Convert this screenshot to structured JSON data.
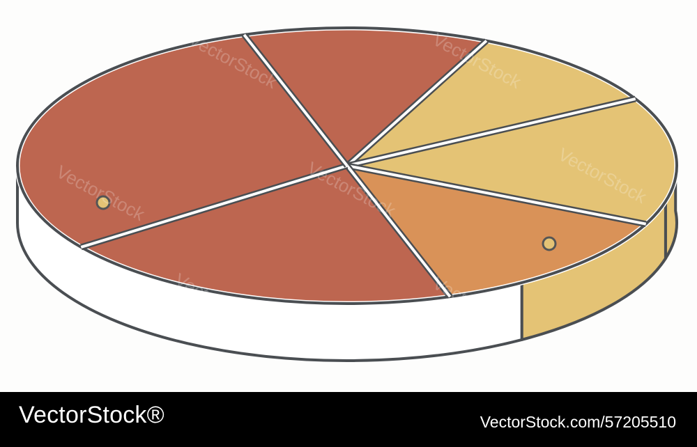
{
  "chart_data": {
    "type": "pie",
    "style": "3d-isometric",
    "title": "",
    "legend": "none",
    "labels": "none",
    "slices": [
      {
        "value": 10,
        "color": "#e4c375"
      },
      {
        "value": 15,
        "color": "#e4c375"
      },
      {
        "value": 13,
        "color": "#d99258"
      },
      {
        "value": 20,
        "color": "#bd6650"
      },
      {
        "value": 30,
        "color": "#bd6650"
      },
      {
        "value": 12,
        "color": "#bd6650"
      }
    ],
    "side_colors": {
      "front": "#ffffff",
      "right": "#e4c375"
    },
    "marker_colors": {
      "fill": "#e4c375",
      "stroke": "#555555"
    },
    "outline_color": "#4a4e52",
    "watermark": "VectorStock"
  },
  "footer": {
    "brand": "VectorStock®",
    "image_id": "VectorStock.com/57205510",
    "background": "#000000",
    "text_color": "#ffffff"
  }
}
